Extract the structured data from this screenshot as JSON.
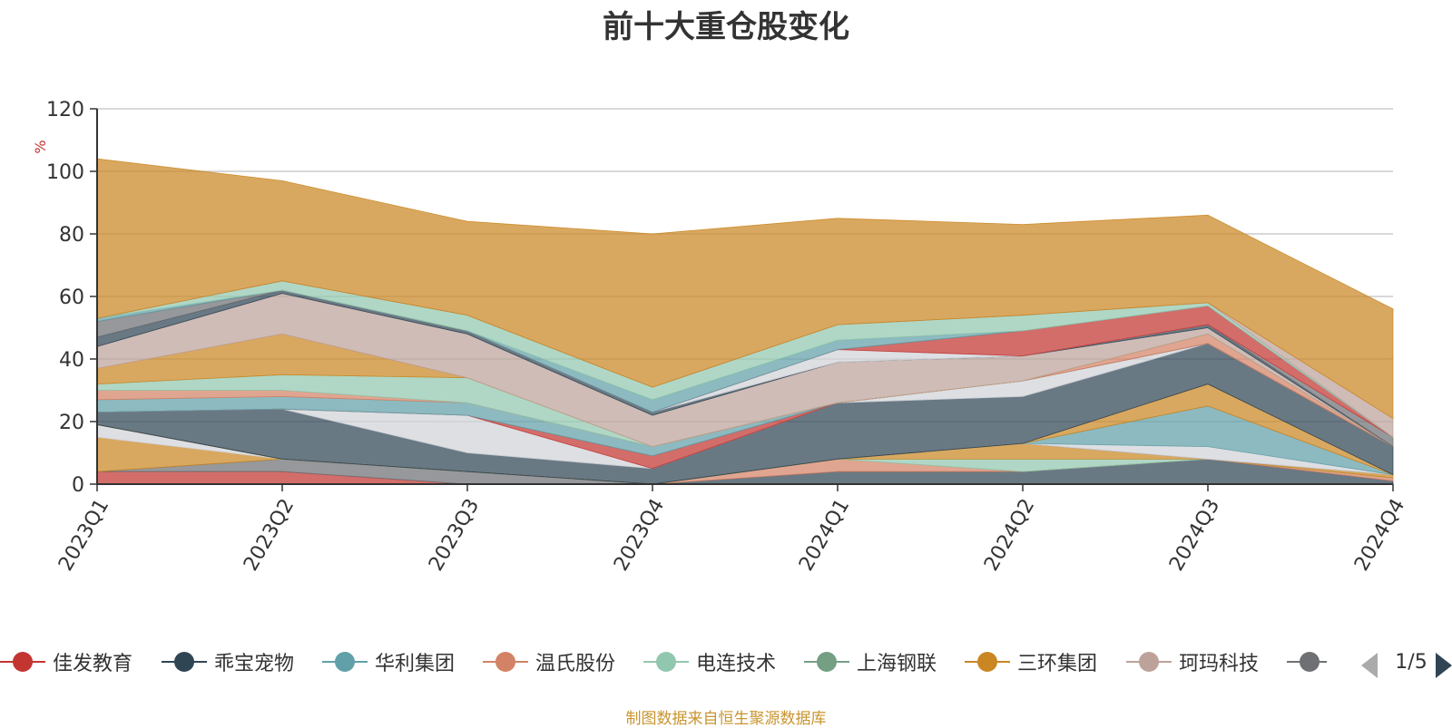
{
  "chart_data": {
    "type": "area",
    "title": "前十大重仓股变化",
    "ylabel": "%",
    "ylim": [
      0,
      120
    ],
    "yticks": [
      0,
      20,
      40,
      60,
      80,
      100,
      120
    ],
    "stacked": true,
    "grid": true,
    "legend_position": "bottom",
    "categories": [
      "2023Q1",
      "2023Q2",
      "2023Q3",
      "2023Q4",
      "2024Q1",
      "2024Q2",
      "2024Q3",
      "2024Q4"
    ],
    "series": [
      {
        "name": "佳发教育",
        "color": "#c23531",
        "values": [
          0,
          7,
          5,
          0,
          0,
          0,
          0,
          0
        ]
      },
      {
        "name": "乖宝宠物",
        "color": "#2f4554",
        "values": [
          0,
          0,
          0,
          0,
          0,
          0,
          0,
          4
        ]
      },
      {
        "name": "华利集团",
        "color": "#61a0a8",
        "values": [
          0,
          0,
          7,
          6,
          7,
          11,
          12,
          16
        ]
      },
      {
        "name": "温氏股份",
        "color": "#d48265",
        "values": [
          0,
          0,
          8,
          11,
          13,
          13,
          7,
          0
        ]
      },
      {
        "name": "电连技术",
        "color": "#91c7ae",
        "values": [
          3,
          3,
          0,
          2,
          0,
          0,
          0,
          3
        ]
      },
      {
        "name": "上海钢联",
        "color": "#749f83",
        "values": [
          0,
          0,
          0,
          0,
          0,
          0,
          0,
          0
        ]
      },
      {
        "name": "三环集团",
        "color": "#ca8622",
        "values": [
          0,
          0,
          0,
          0,
          0,
          0,
          0,
          0
        ]
      },
      {
        "name": "珂玛科技",
        "color": "#bda29a",
        "values": [
          0,
          0,
          0,
          0,
          0,
          0,
          0,
          0
        ]
      },
      {
        "name": "",
        "color": "#6e7074",
        "values": [
          0,
          0,
          0,
          0,
          0,
          0,
          0,
          0
        ]
      }
    ],
    "layers": [
      {
        "color": "#c23531",
        "values": [
          4,
          4,
          0,
          0,
          0,
          0,
          0,
          0
        ]
      },
      {
        "color": "#6e7074",
        "values": [
          0,
          4,
          4,
          0,
          0,
          0,
          0,
          0
        ]
      },
      {
        "color": "#ca8622",
        "values": [
          11,
          0,
          0,
          0,
          0,
          0,
          0,
          0
        ]
      },
      {
        "color": "#d0d3d8",
        "values": [
          4,
          0,
          0,
          0,
          0,
          0,
          0,
          0
        ]
      },
      {
        "color": "#2f4554",
        "values": [
          0,
          0,
          0,
          0,
          4,
          4,
          8,
          1
        ]
      },
      {
        "color": "#d48265",
        "values": [
          0,
          0,
          0,
          0,
          4,
          0,
          0,
          1
        ]
      },
      {
        "color": "#91c7ae",
        "values": [
          0,
          0,
          0,
          0,
          0,
          4,
          0,
          0
        ]
      },
      {
        "color": "#ca8622",
        "values": [
          0,
          0,
          0,
          0,
          0,
          5,
          0,
          1
        ]
      },
      {
        "color": "#6e7074",
        "values": [
          0,
          0,
          0,
          0,
          0,
          0,
          0,
          0
        ]
      },
      {
        "color": "#d0d3d8",
        "values": [
          0,
          0,
          0,
          0,
          0,
          0,
          4,
          0
        ]
      },
      {
        "color": "#61a0a8",
        "values": [
          0,
          0,
          0,
          0,
          0,
          0,
          13,
          0
        ]
      },
      {
        "color": "#ca8622",
        "values": [
          0,
          0,
          0,
          0,
          0,
          0,
          7,
          0
        ]
      },
      {
        "color": "#2f4554",
        "values": [
          4,
          16,
          6,
          5,
          18,
          15,
          13,
          9
        ]
      },
      {
        "color": "#d0d3d8",
        "values": [
          0,
          0,
          12,
          0,
          0,
          5,
          0,
          0
        ]
      },
      {
        "color": "#c23531",
        "values": [
          0,
          0,
          0,
          4,
          0,
          0,
          0,
          0
        ]
      },
      {
        "color": "#61a0a8",
        "values": [
          4,
          4,
          4,
          3,
          0,
          0,
          0,
          0
        ]
      },
      {
        "color": "#d48265",
        "values": [
          3,
          2,
          0,
          0,
          0,
          0,
          3,
          0
        ]
      },
      {
        "color": "#91c7ae",
        "values": [
          2,
          5,
          8,
          0,
          0,
          0,
          0,
          0
        ]
      },
      {
        "color": "#ca8622",
        "values": [
          5,
          13,
          0,
          0,
          0,
          0,
          0,
          0
        ]
      },
      {
        "color": "#bda29a",
        "values": [
          7,
          13,
          14,
          10,
          13,
          8,
          2,
          0
        ]
      },
      {
        "color": "#2f4554",
        "values": [
          3,
          1,
          1,
          1,
          0,
          0,
          1,
          0
        ]
      },
      {
        "color": "#6e7074",
        "values": [
          5,
          0,
          0,
          0,
          0,
          0,
          0,
          3
        ]
      },
      {
        "color": "#d0d3d8",
        "values": [
          0,
          0,
          0,
          0,
          4,
          0,
          0,
          0
        ]
      },
      {
        "color": "#c23531",
        "values": [
          0,
          0,
          0,
          0,
          0,
          8,
          6,
          0
        ]
      },
      {
        "color": "#61a0a8",
        "values": [
          1,
          0,
          0,
          4,
          3,
          0,
          0,
          0
        ]
      },
      {
        "color": "#91c7ae",
        "values": [
          0,
          3,
          5,
          4,
          5,
          5,
          1,
          0
        ]
      },
      {
        "color": "#bda29a",
        "values": [
          0,
          0,
          0,
          0,
          0,
          0,
          0,
          6
        ]
      },
      {
        "color": "#ca8622",
        "values": [
          51,
          32,
          30,
          49,
          34,
          29,
          28,
          35
        ]
      }
    ]
  },
  "legend": {
    "page_indicator": "1/5"
  },
  "footer": {
    "note": "制图数据来自恒生聚源数据库"
  }
}
